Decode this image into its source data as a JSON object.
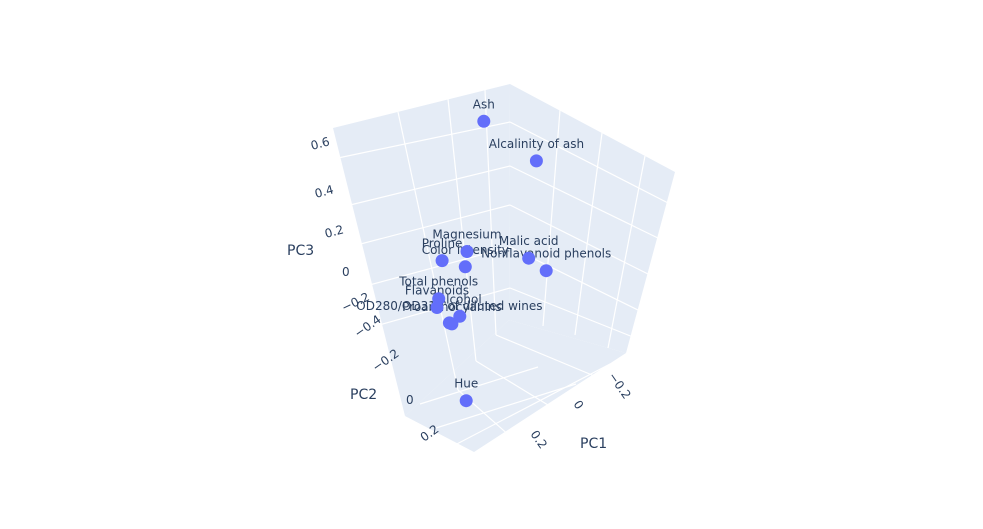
{
  "chart_data": {
    "type": "scatter3d",
    "title": "",
    "axes": {
      "x": {
        "title": "PC1",
        "ticks": [
          "−0.2",
          "0",
          "0.2"
        ]
      },
      "y": {
        "title": "PC2",
        "ticks": [
          "−0.4",
          "−0.2",
          "0",
          "0.2"
        ]
      },
      "z": {
        "title": "PC3",
        "ticks": [
          "−0.2",
          "0",
          "0.2",
          "0.4",
          "0.6"
        ]
      }
    },
    "marker_color": "#636efa",
    "pane_color": "#e5ecf6",
    "points": [
      {
        "label": "Ash",
        "x": 0.02,
        "y": -0.33,
        "z": 0.63
      },
      {
        "label": "Alcalinity of ash",
        "x": -0.24,
        "y": 0.01,
        "z": 0.61
      },
      {
        "label": "Malic acid",
        "x": -0.25,
        "y": -0.22,
        "z": 0.09
      },
      {
        "label": "Nonflavanoid phenols",
        "x": -0.3,
        "y": 0.03,
        "z": 0.17
      },
      {
        "label": "Magnesium",
        "x": 0.14,
        "y": -0.3,
        "z": 0.15
      },
      {
        "label": "Color intensity",
        "x": 0.09,
        "y": -0.53,
        "z": -0.05
      },
      {
        "label": "Alcohol",
        "x": 0.14,
        "y": -0.48,
        "z": -0.21
      },
      {
        "label": "Proanthocyanins",
        "x": 0.31,
        "y": -0.04,
        "z": 0.04
      },
      {
        "label": "Proline",
        "x": 0.29,
        "y": -0.36,
        "z": 0.11
      },
      {
        "label": "Total phenols",
        "x": 0.39,
        "y": -0.07,
        "z": 0.14
      },
      {
        "label": "Flavanoids",
        "x": 0.42,
        "y": 0.0,
        "z": 0.15
      },
      {
        "label": "OD280/OD315 of diluted wines",
        "x": 0.38,
        "y": 0.16,
        "z": 0.17
      },
      {
        "label": "Hue",
        "x": 0.3,
        "y": 0.28,
        "z": -0.09
      }
    ]
  }
}
